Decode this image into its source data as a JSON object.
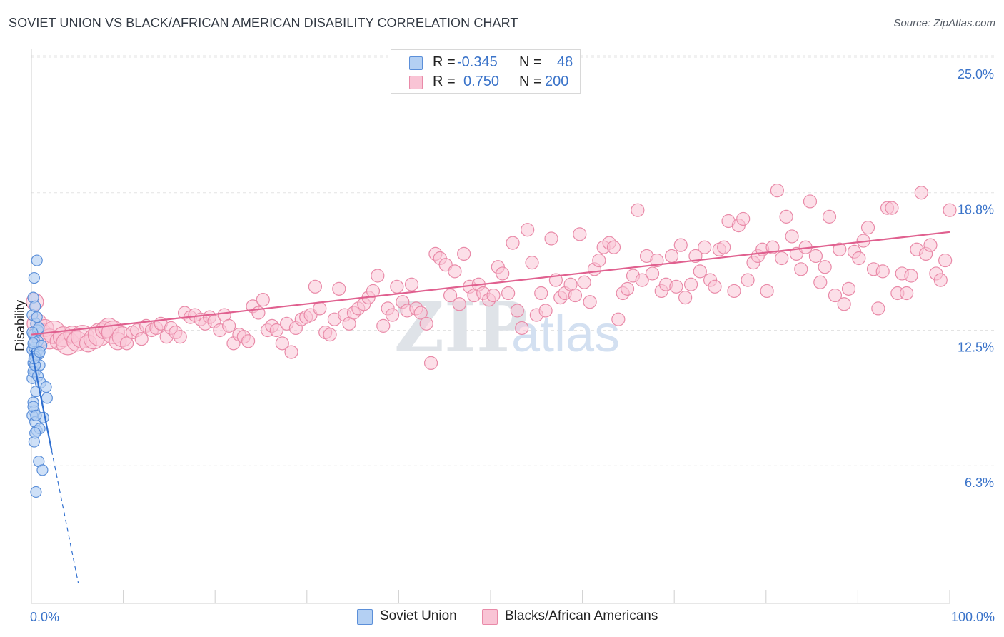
{
  "header": {
    "title": "SOVIET UNION VS BLACK/AFRICAN AMERICAN DISABILITY CORRELATION CHART",
    "source": "Source: ZipAtlas.com"
  },
  "legend": {
    "rows": [
      {
        "r_label": "R =",
        "r_value": "-0.345",
        "n_label": "N =",
        "n_value": "48"
      },
      {
        "r_label": "R =",
        "r_value": "0.750",
        "n_label": "N =",
        "n_value": "200"
      }
    ]
  },
  "bottom_legend": {
    "items": [
      {
        "label": "Soviet Union"
      },
      {
        "label": "Blacks/African Americans"
      }
    ]
  },
  "watermark": {
    "zip": "ZIP",
    "atlas": "atlas"
  },
  "colors": {
    "soviet_fill": "#b4d0f3",
    "soviet_stroke": "#5b8fd9",
    "soviet_line": "#2f6fd0",
    "black_fill": "#f9c4d5",
    "black_stroke": "#e98aa8",
    "black_line": "#e0608f",
    "tick_text": "#3a73c9",
    "grid": "#e3e3e3"
  },
  "chart_data": {
    "type": "scatter",
    "title": "SOVIET UNION VS BLACK/AFRICAN AMERICAN DISABILITY CORRELATION CHART",
    "xlabel": "",
    "ylabel": "Disability",
    "xlim": [
      0,
      100
    ],
    "ylim": [
      0,
      25
    ],
    "x_tick_labels": [
      "0.0%",
      "100.0%"
    ],
    "y_ticks": [
      6.3,
      12.5,
      18.8,
      25.0
    ],
    "y_tick_labels": [
      "6.3%",
      "12.5%",
      "18.8%",
      "25.0%"
    ],
    "grid": true,
    "legend_position": "top-center",
    "series": [
      {
        "name": "Soviet Union",
        "r": -0.345,
        "n": 48,
        "trend": {
          "x0": 0.0,
          "y0": 11.6,
          "x1": 2.2,
          "y1": 7.0,
          "dashed_to_x": 5.1
        },
        "points": [
          [
            0.1,
            13.2
          ],
          [
            0.2,
            12.3
          ],
          [
            0.1,
            11.6
          ],
          [
            0.3,
            11.5
          ],
          [
            0.2,
            11.0
          ],
          [
            0.4,
            10.6
          ],
          [
            0.1,
            10.3
          ],
          [
            0.5,
            9.7
          ],
          [
            0.2,
            9.2
          ],
          [
            0.3,
            8.8
          ],
          [
            0.1,
            8.6
          ],
          [
            0.4,
            8.3
          ],
          [
            0.6,
            7.9
          ],
          [
            0.3,
            7.4
          ],
          [
            0.8,
            6.5
          ],
          [
            1.2,
            6.1
          ],
          [
            0.5,
            5.1
          ],
          [
            0.6,
            15.7
          ],
          [
            0.3,
            14.9
          ],
          [
            0.2,
            14.0
          ],
          [
            0.4,
            13.6
          ],
          [
            0.5,
            12.8
          ],
          [
            0.7,
            12.0
          ],
          [
            0.3,
            11.7
          ],
          [
            0.6,
            11.5
          ],
          [
            0.8,
            11.4
          ],
          [
            0.4,
            11.3
          ],
          [
            0.9,
            10.9
          ],
          [
            0.2,
            10.6
          ],
          [
            0.7,
            10.4
          ],
          [
            1.0,
            10.1
          ],
          [
            1.6,
            9.9
          ],
          [
            1.7,
            9.4
          ],
          [
            1.3,
            8.5
          ],
          [
            0.9,
            8.0
          ],
          [
            0.4,
            7.8
          ],
          [
            0.2,
            9.0
          ],
          [
            0.5,
            8.6
          ],
          [
            0.7,
            12.5
          ],
          [
            0.3,
            12.0
          ],
          [
            0.6,
            13.1
          ],
          [
            0.2,
            11.9
          ],
          [
            1.1,
            11.8
          ],
          [
            0.4,
            10.9
          ],
          [
            0.8,
            12.6
          ],
          [
            0.1,
            12.4
          ],
          [
            0.3,
            11.2
          ],
          [
            0.9,
            11.5
          ]
        ]
      },
      {
        "name": "Blacks/African Americans",
        "r": 0.75,
        "n": 200,
        "trend": {
          "x0": 0.0,
          "y0": 12.3,
          "x1": 100.0,
          "y1": 17.0
        },
        "points": [
          [
            0.3,
            13.8
          ],
          [
            0.5,
            12.8
          ],
          [
            0.8,
            12.3
          ],
          [
            1.2,
            12.6
          ],
          [
            1.6,
            12.1
          ],
          [
            2.0,
            12.4
          ],
          [
            2.4,
            12.0
          ],
          [
            2.8,
            12.2
          ],
          [
            3.2,
            11.9
          ],
          [
            3.6,
            12.3
          ],
          [
            4.0,
            12.0
          ],
          [
            4.5,
            12.2
          ],
          [
            5.0,
            11.9
          ],
          [
            5.5,
            12.1
          ],
          [
            6.0,
            12.3
          ],
          [
            6.4,
            12.5
          ],
          [
            6.8,
            12.6
          ],
          [
            7.2,
            12.4
          ],
          [
            7.6,
            12.0
          ],
          [
            8.0,
            12.2
          ],
          [
            8.4,
            11.9
          ],
          [
            8.9,
            12.4
          ],
          [
            9.3,
            12.5
          ],
          [
            9.7,
            12.1
          ],
          [
            10.1,
            12.7
          ],
          [
            10.6,
            12.5
          ],
          [
            11.0,
            12.6
          ],
          [
            11.4,
            12.8
          ],
          [
            11.9,
            12.2
          ],
          [
            12.3,
            12.6
          ],
          [
            12.7,
            12.4
          ],
          [
            13.1,
            12.2
          ],
          [
            13.5,
            13.3
          ],
          [
            14.0,
            13.1
          ],
          [
            14.4,
            13.2
          ],
          [
            14.9,
            13.0
          ],
          [
            15.3,
            12.8
          ],
          [
            15.7,
            13.1
          ],
          [
            16.1,
            12.9
          ],
          [
            16.6,
            12.5
          ],
          [
            17.0,
            13.2
          ],
          [
            17.4,
            12.7
          ],
          [
            17.8,
            11.9
          ],
          [
            18.3,
            12.3
          ],
          [
            18.7,
            12.2
          ],
          [
            19.1,
            12.0
          ],
          [
            19.5,
            13.6
          ],
          [
            20.0,
            13.3
          ],
          [
            20.4,
            13.9
          ],
          [
            20.8,
            12.5
          ],
          [
            21.2,
            12.7
          ],
          [
            21.6,
            12.5
          ],
          [
            22.1,
            11.9
          ],
          [
            22.5,
            12.8
          ],
          [
            22.9,
            11.5
          ],
          [
            23.3,
            12.6
          ],
          [
            23.8,
            13.0
          ],
          [
            24.2,
            13.1
          ],
          [
            24.6,
            13.2
          ],
          [
            25.0,
            14.5
          ],
          [
            25.4,
            13.5
          ],
          [
            25.9,
            12.4
          ],
          [
            26.3,
            12.3
          ],
          [
            26.7,
            13.0
          ],
          [
            27.1,
            14.4
          ],
          [
            27.6,
            13.2
          ],
          [
            28.0,
            12.8
          ],
          [
            28.4,
            13.3
          ],
          [
            28.8,
            13.5
          ],
          [
            29.3,
            13.7
          ],
          [
            29.7,
            14.0
          ],
          [
            30.1,
            14.3
          ],
          [
            30.5,
            15.0
          ],
          [
            31.0,
            12.7
          ],
          [
            31.4,
            13.5
          ],
          [
            31.8,
            13.2
          ],
          [
            32.2,
            14.5
          ],
          [
            32.7,
            13.8
          ],
          [
            33.1,
            13.4
          ],
          [
            33.5,
            14.6
          ],
          [
            33.9,
            13.5
          ],
          [
            34.3,
            13.3
          ],
          [
            34.8,
            12.8
          ],
          [
            35.2,
            11.0
          ],
          [
            35.6,
            16.0
          ],
          [
            36.0,
            15.8
          ],
          [
            36.5,
            15.5
          ],
          [
            36.9,
            14.1
          ],
          [
            37.3,
            15.2
          ],
          [
            37.7,
            13.7
          ],
          [
            38.1,
            16.0
          ],
          [
            38.6,
            14.5
          ],
          [
            39.0,
            14.1
          ],
          [
            39.4,
            14.6
          ],
          [
            39.8,
            14.2
          ],
          [
            40.3,
            13.9
          ],
          [
            40.7,
            14.1
          ],
          [
            41.1,
            15.4
          ],
          [
            41.5,
            15.1
          ],
          [
            42.0,
            14.2
          ],
          [
            42.4,
            16.5
          ],
          [
            42.8,
            13.4
          ],
          [
            43.2,
            12.6
          ],
          [
            43.7,
            17.1
          ],
          [
            44.1,
            15.6
          ],
          [
            44.5,
            13.2
          ],
          [
            44.9,
            14.2
          ],
          [
            45.3,
            13.4
          ],
          [
            45.8,
            16.7
          ],
          [
            46.2,
            14.8
          ],
          [
            46.6,
            14.0
          ],
          [
            47.0,
            14.2
          ],
          [
            47.5,
            14.6
          ],
          [
            47.9,
            14.1
          ],
          [
            48.3,
            16.9
          ],
          [
            48.7,
            14.7
          ],
          [
            49.2,
            13.8
          ],
          [
            49.6,
            15.3
          ],
          [
            50.0,
            15.7
          ],
          [
            50.4,
            16.3
          ],
          [
            50.9,
            16.5
          ],
          [
            51.3,
            16.3
          ],
          [
            51.7,
            13.0
          ],
          [
            52.1,
            14.2
          ],
          [
            52.5,
            14.4
          ],
          [
            53.0,
            15.0
          ],
          [
            53.4,
            18.0
          ],
          [
            53.8,
            14.8
          ],
          [
            54.2,
            15.9
          ],
          [
            54.7,
            15.1
          ],
          [
            55.1,
            15.7
          ],
          [
            55.5,
            14.3
          ],
          [
            55.9,
            14.6
          ],
          [
            56.4,
            15.9
          ],
          [
            56.8,
            14.5
          ],
          [
            57.2,
            16.4
          ],
          [
            57.6,
            14.0
          ],
          [
            58.1,
            14.6
          ],
          [
            58.5,
            15.9
          ],
          [
            58.9,
            15.2
          ],
          [
            59.3,
            16.3
          ],
          [
            59.8,
            14.8
          ],
          [
            60.2,
            14.5
          ],
          [
            60.6,
            16.2
          ],
          [
            61.0,
            16.3
          ],
          [
            61.4,
            17.5
          ],
          [
            61.9,
            14.3
          ],
          [
            62.3,
            17.3
          ],
          [
            62.7,
            17.6
          ],
          [
            63.1,
            14.8
          ],
          [
            63.6,
            15.6
          ],
          [
            64.0,
            15.9
          ],
          [
            64.4,
            16.2
          ],
          [
            64.8,
            14.3
          ],
          [
            65.3,
            16.3
          ],
          [
            65.7,
            18.9
          ],
          [
            66.1,
            15.8
          ],
          [
            66.5,
            17.7
          ],
          [
            67.0,
            16.8
          ],
          [
            67.4,
            16.0
          ],
          [
            67.8,
            15.3
          ],
          [
            68.2,
            16.3
          ],
          [
            68.6,
            18.4
          ],
          [
            69.1,
            15.9
          ],
          [
            69.5,
            14.7
          ],
          [
            69.9,
            15.4
          ],
          [
            70.3,
            17.7
          ],
          [
            70.8,
            14.1
          ],
          [
            71.2,
            16.2
          ],
          [
            71.6,
            13.7
          ],
          [
            72.0,
            14.4
          ],
          [
            72.5,
            16.1
          ],
          [
            72.9,
            15.8
          ],
          [
            73.3,
            16.6
          ],
          [
            73.7,
            17.2
          ],
          [
            74.2,
            15.3
          ],
          [
            74.6,
            13.5
          ],
          [
            75.0,
            15.2
          ],
          [
            75.4,
            18.1
          ],
          [
            75.8,
            18.1
          ],
          [
            76.3,
            14.2
          ],
          [
            76.7,
            15.1
          ],
          [
            77.1,
            14.2
          ],
          [
            77.5,
            15.0
          ],
          [
            78.0,
            16.2
          ],
          [
            78.4,
            18.8
          ],
          [
            78.8,
            16.0
          ],
          [
            79.2,
            16.4
          ],
          [
            79.7,
            15.1
          ],
          [
            80.1,
            14.8
          ],
          [
            80.5,
            15.7
          ],
          [
            80.9,
            18.0
          ]
        ]
      }
    ]
  }
}
